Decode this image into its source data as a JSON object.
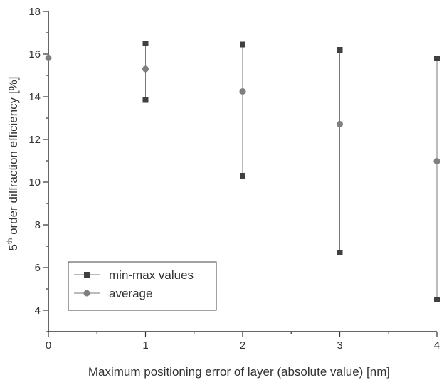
{
  "chart_data": {
    "type": "scatter",
    "title": "",
    "xlabel": "Maximum positioning error of layer (absolute value) [nm]",
    "ylabel": {
      "prefix": "5",
      "superscript": "th",
      "suffix": " order diffraction efficiency [%]"
    },
    "xlim": [
      0,
      4
    ],
    "ylim": [
      3,
      18
    ],
    "xticks": [
      "0",
      "1",
      "2",
      "3",
      "4"
    ],
    "yticks": [
      "4",
      "6",
      "8",
      "10",
      "12",
      "14",
      "16",
      "18"
    ],
    "x": [
      0,
      1,
      2,
      3,
      4
    ],
    "series": [
      {
        "name": "min-max values",
        "marker": "square",
        "color": "#404040",
        "min": [
          null,
          13.85,
          10.3,
          6.7,
          4.5
        ],
        "max": [
          null,
          16.5,
          16.45,
          16.2,
          15.8
        ]
      },
      {
        "name": "average",
        "marker": "circle",
        "color": "#7f7f7f",
        "values": [
          15.82,
          15.3,
          14.25,
          12.72,
          10.98
        ]
      }
    ],
    "grid": false,
    "legend": {
      "position": "bottom-left"
    }
  }
}
